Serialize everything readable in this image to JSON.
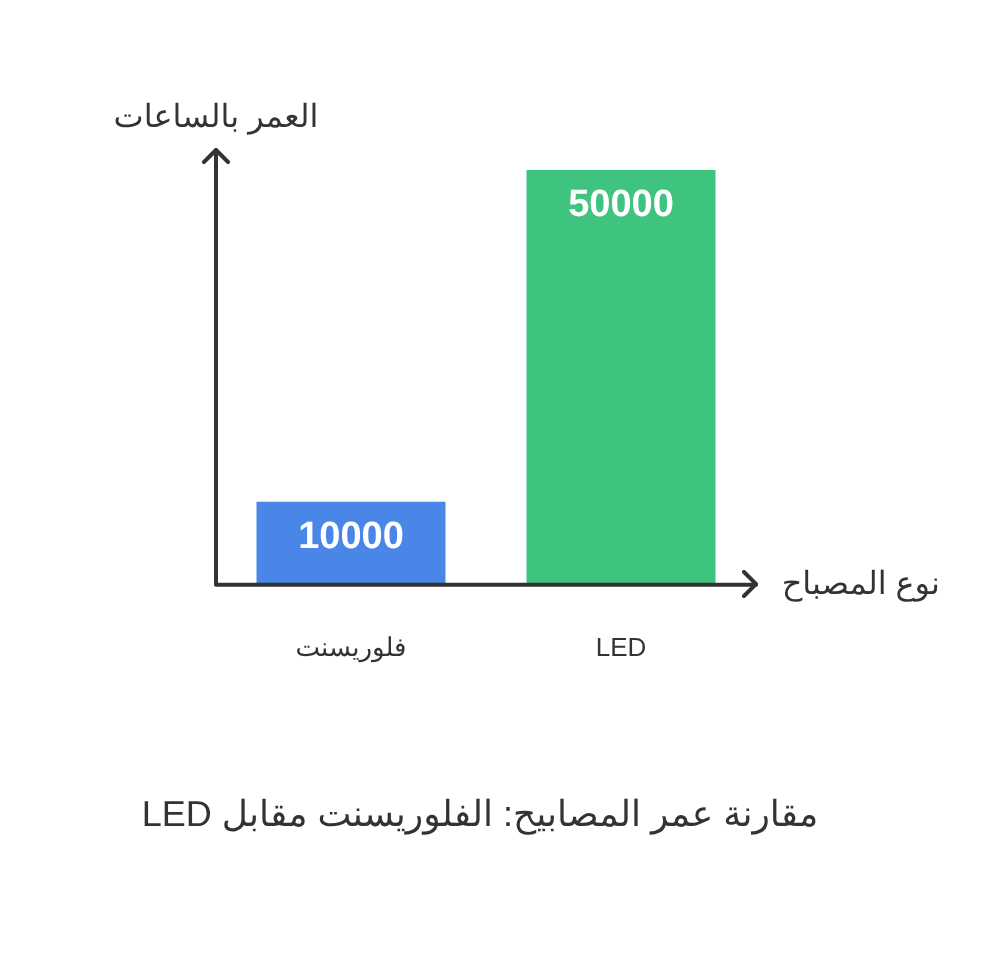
{
  "chart_data": {
    "type": "bar",
    "title": "مقارنة عمر المصابيح: الفلوريسنت مقابل LED",
    "xlabel": "نوع المصباح",
    "ylabel": "العمر بالساعات",
    "categories": [
      "فلوريسنت",
      "LED"
    ],
    "values": [
      10000,
      50000
    ],
    "colors": [
      "#4a86e8",
      "#3ec47e"
    ],
    "data_labels": true,
    "grid": false,
    "legend": false
  }
}
